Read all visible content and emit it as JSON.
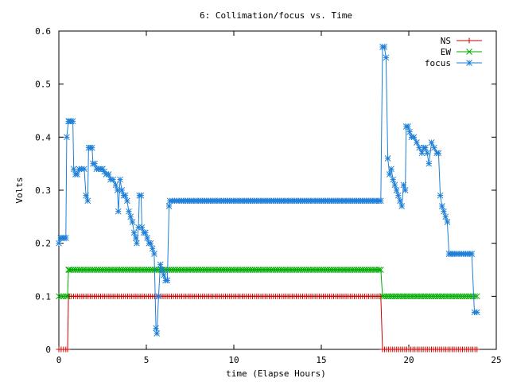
{
  "chart_data": {
    "type": "line",
    "title": "6: Collimation/focus vs. Time",
    "xlabel": "time (Elapse Hours)",
    "ylabel": "Volts",
    "xlim": [
      0,
      25
    ],
    "ylim": [
      0,
      0.6
    ],
    "x_ticks": [
      0,
      5,
      10,
      15,
      20,
      25
    ],
    "x_tick_labels": [
      "0",
      "5",
      "10",
      "15",
      "20",
      "25"
    ],
    "y_ticks": [
      0,
      0.1,
      0.2,
      0.3,
      0.4,
      0.5,
      0.6
    ],
    "y_tick_labels": [
      "0",
      "0.1",
      "0.2",
      "0.3",
      "0.4",
      "0.5",
      "0.6"
    ],
    "grid": false,
    "legend_position": "top-right",
    "series": [
      {
        "name": "NS",
        "color": "#cc0000",
        "marker": "plus",
        "points": [
          [
            0,
            0
          ],
          [
            0.4,
            0
          ],
          [
            0.5,
            0
          ],
          [
            0.55,
            0.1
          ],
          [
            0.6,
            0.1
          ],
          [
            5,
            0.1
          ],
          [
            10,
            0.1
          ],
          [
            15,
            0.1
          ],
          [
            18.3,
            0.1
          ],
          [
            18.4,
            0.1
          ],
          [
            18.5,
            0
          ],
          [
            20,
            0
          ],
          [
            22,
            0
          ],
          [
            23.9,
            0
          ]
        ]
      },
      {
        "name": "EW",
        "color": "#00aa00",
        "marker": "x",
        "points": [
          [
            0,
            0.1
          ],
          [
            0.4,
            0.1
          ],
          [
            0.5,
            0.1
          ],
          [
            0.55,
            0.15
          ],
          [
            0.6,
            0.15
          ],
          [
            5,
            0.15
          ],
          [
            10,
            0.15
          ],
          [
            15,
            0.15
          ],
          [
            18.3,
            0.15
          ],
          [
            18.4,
            0.15
          ],
          [
            18.5,
            0.1
          ],
          [
            20,
            0.1
          ],
          [
            22,
            0.1
          ],
          [
            23.9,
            0.1
          ]
        ]
      },
      {
        "name": "focus",
        "color": "#1e7fd8",
        "marker": "star",
        "points": [
          [
            0,
            0.2
          ],
          [
            0.1,
            0.21
          ],
          [
            0.3,
            0.21
          ],
          [
            0.4,
            0.21
          ],
          [
            0.45,
            0.4
          ],
          [
            0.55,
            0.43
          ],
          [
            0.6,
            0.43
          ],
          [
            0.8,
            0.43
          ],
          [
            0.85,
            0.34
          ],
          [
            0.95,
            0.33
          ],
          [
            1.05,
            0.33
          ],
          [
            1.15,
            0.34
          ],
          [
            1.3,
            0.34
          ],
          [
            1.45,
            0.34
          ],
          [
            1.55,
            0.29
          ],
          [
            1.65,
            0.28
          ],
          [
            1.7,
            0.38
          ],
          [
            1.8,
            0.38
          ],
          [
            1.9,
            0.38
          ],
          [
            1.95,
            0.35
          ],
          [
            2.05,
            0.35
          ],
          [
            2.15,
            0.34
          ],
          [
            2.3,
            0.34
          ],
          [
            2.5,
            0.34
          ],
          [
            2.7,
            0.33
          ],
          [
            2.85,
            0.33
          ],
          [
            2.95,
            0.32
          ],
          [
            3.1,
            0.32
          ],
          [
            3.25,
            0.31
          ],
          [
            3.35,
            0.3
          ],
          [
            3.4,
            0.26
          ],
          [
            3.5,
            0.32
          ],
          [
            3.6,
            0.3
          ],
          [
            3.7,
            0.29
          ],
          [
            3.8,
            0.29
          ],
          [
            3.9,
            0.28
          ],
          [
            4,
            0.26
          ],
          [
            4.1,
            0.25
          ],
          [
            4.2,
            0.24
          ],
          [
            4.3,
            0.22
          ],
          [
            4.4,
            0.21
          ],
          [
            4.45,
            0.2
          ],
          [
            4.55,
            0.23
          ],
          [
            4.6,
            0.29
          ],
          [
            4.7,
            0.29
          ],
          [
            4.75,
            0.23
          ],
          [
            4.85,
            0.22
          ],
          [
            4.95,
            0.22
          ],
          [
            5.05,
            0.21
          ],
          [
            5.15,
            0.2
          ],
          [
            5.25,
            0.2
          ],
          [
            5.35,
            0.19
          ],
          [
            5.45,
            0.18
          ],
          [
            5.55,
            0.04
          ],
          [
            5.6,
            0.03
          ],
          [
            5.7,
            0.1
          ],
          [
            5.8,
            0.16
          ],
          [
            5.9,
            0.15
          ],
          [
            6.0,
            0.14
          ],
          [
            6.1,
            0.13
          ],
          [
            6.2,
            0.13
          ],
          [
            6.3,
            0.27
          ],
          [
            6.35,
            0.28
          ],
          [
            7,
            0.28
          ],
          [
            10,
            0.28
          ],
          [
            15,
            0.28
          ],
          [
            18.3,
            0.28
          ],
          [
            18.4,
            0.28
          ],
          [
            18.5,
            0.57
          ],
          [
            18.6,
            0.57
          ],
          [
            18.7,
            0.55
          ],
          [
            18.8,
            0.36
          ],
          [
            18.9,
            0.33
          ],
          [
            19.0,
            0.34
          ],
          [
            19.1,
            0.32
          ],
          [
            19.2,
            0.31
          ],
          [
            19.3,
            0.3
          ],
          [
            19.4,
            0.29
          ],
          [
            19.5,
            0.28
          ],
          [
            19.6,
            0.27
          ],
          [
            19.7,
            0.31
          ],
          [
            19.8,
            0.3
          ],
          [
            19.85,
            0.42
          ],
          [
            19.95,
            0.42
          ],
          [
            20.05,
            0.41
          ],
          [
            20.15,
            0.4
          ],
          [
            20.3,
            0.4
          ],
          [
            20.45,
            0.39
          ],
          [
            20.6,
            0.38
          ],
          [
            20.75,
            0.37
          ],
          [
            20.85,
            0.38
          ],
          [
            20.95,
            0.38
          ],
          [
            21.05,
            0.37
          ],
          [
            21.15,
            0.35
          ],
          [
            21.3,
            0.39
          ],
          [
            21.45,
            0.38
          ],
          [
            21.6,
            0.37
          ],
          [
            21.7,
            0.37
          ],
          [
            21.8,
            0.29
          ],
          [
            21.9,
            0.27
          ],
          [
            22.0,
            0.26
          ],
          [
            22.1,
            0.25
          ],
          [
            22.2,
            0.24
          ],
          [
            22.3,
            0.18
          ],
          [
            22.5,
            0.18
          ],
          [
            23,
            0.18
          ],
          [
            23.5,
            0.18
          ],
          [
            23.6,
            0.18
          ],
          [
            23.75,
            0.07
          ],
          [
            23.9,
            0.07
          ]
        ]
      }
    ]
  }
}
